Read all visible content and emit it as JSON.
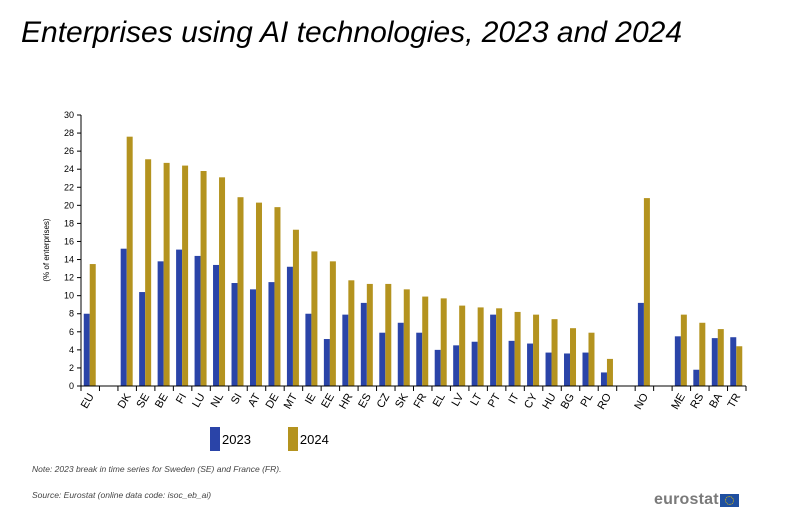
{
  "title": "Enterprises using AI technologies, 2023 and 2024",
  "legend": [
    {
      "label": "2023",
      "color": "#2a44a8"
    },
    {
      "label": "2024",
      "color": "#b4931f"
    }
  ],
  "note": "Note: 2023 break in time series for Sweden (SE) and France (FR).",
  "source": "Source: Eurostat (online data code: isoc_eb_ai)",
  "logo_text": "eurostat",
  "chart_data": {
    "type": "bar",
    "title": "Enterprises using AI technologies, 2023 and 2024",
    "xlabel": "",
    "ylabel": "(% of enterprises)",
    "ylim": [
      0,
      30
    ],
    "yticks": [
      0,
      2,
      4,
      6,
      8,
      10,
      12,
      14,
      16,
      18,
      20,
      22,
      24,
      26,
      28,
      30
    ],
    "grid": false,
    "legend_position": "bottom",
    "categories": [
      "EU",
      "",
      "DK",
      "SE",
      "BE",
      "FI",
      "LU",
      "NL",
      "SI",
      "AT",
      "DE",
      "MT",
      "IE",
      "EE",
      "HR",
      "ES",
      "CZ",
      "SK",
      "FR",
      "EL",
      "LV",
      "LT",
      "PT",
      "IT",
      "CY",
      "HU",
      "BG",
      "PL",
      "RO",
      "",
      "NO",
      "",
      "ME",
      "RS",
      "BA",
      "TR"
    ],
    "series": [
      {
        "name": "2023",
        "color": "#2a44a8",
        "values": [
          8.0,
          null,
          15.2,
          10.4,
          13.8,
          15.1,
          14.4,
          13.4,
          11.4,
          10.7,
          11.5,
          13.2,
          8.0,
          5.2,
          7.9,
          9.2,
          5.9,
          7.0,
          5.9,
          4.0,
          4.5,
          4.9,
          7.9,
          5.0,
          4.7,
          3.7,
          3.6,
          3.7,
          1.5,
          null,
          9.2,
          null,
          5.5,
          1.8,
          5.3,
          5.4
        ]
      },
      {
        "name": "2024",
        "color": "#b4931f",
        "values": [
          13.5,
          null,
          27.6,
          25.1,
          24.7,
          24.4,
          23.8,
          23.1,
          20.9,
          20.3,
          19.8,
          17.3,
          14.9,
          13.8,
          11.7,
          11.3,
          11.3,
          10.7,
          9.9,
          9.7,
          8.9,
          8.7,
          8.6,
          8.2,
          7.9,
          7.4,
          6.4,
          5.9,
          3.0,
          null,
          20.8,
          null,
          7.9,
          7.0,
          6.3,
          4.4
        ]
      }
    ]
  }
}
